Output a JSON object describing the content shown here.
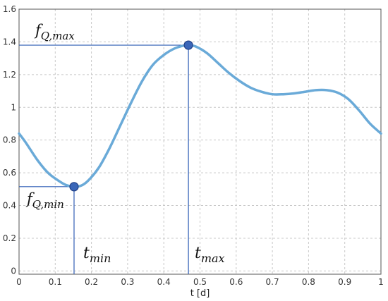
{
  "chart_data": {
    "type": "line",
    "xlabel": "t [d]",
    "ylabel": "",
    "xlim": [
      0,
      1
    ],
    "ylim": [
      -0.02,
      1.6
    ],
    "grid": true,
    "x_ticks": [
      0,
      0.1,
      0.2,
      0.3,
      0.4,
      0.5,
      0.6,
      0.7,
      0.8,
      0.9,
      1
    ],
    "x_tick_labels": [
      "0",
      "0.1",
      "0.2",
      "0.3",
      "0.4",
      "0.5",
      "0.6",
      "0.7",
      "0.8",
      "0.9",
      "1"
    ],
    "y_ticks": [
      0,
      0.2,
      0.4,
      0.6,
      0.8,
      1,
      1.2,
      1.4,
      1.6
    ],
    "y_tick_labels": [
      "0",
      "0.2",
      "0.4",
      "0.6",
      "0.8",
      "1",
      "1.2",
      "1.4",
      "1.6"
    ],
    "line_color": "#6aaad8",
    "marker_color": "#3a66b8",
    "guide_color": "#2f5eb5",
    "series": [
      {
        "x": [
          0,
          0.02,
          0.05,
          0.08,
          0.11,
          0.13,
          0.15,
          0.17,
          0.19,
          0.22,
          0.25,
          0.28,
          0.31,
          0.34,
          0.37,
          0.4,
          0.43,
          0.46,
          0.47,
          0.49,
          0.52,
          0.55,
          0.58,
          0.61,
          0.64,
          0.67,
          0.7,
          0.73,
          0.76,
          0.79,
          0.82,
          0.85,
          0.88,
          0.91,
          0.94,
          0.97,
          1.0
        ],
        "y": [
          0.84,
          0.78,
          0.68,
          0.6,
          0.55,
          0.525,
          0.515,
          0.52,
          0.55,
          0.63,
          0.75,
          0.89,
          1.03,
          1.16,
          1.26,
          1.32,
          1.36,
          1.38,
          1.38,
          1.37,
          1.33,
          1.27,
          1.21,
          1.16,
          1.12,
          1.095,
          1.08,
          1.08,
          1.085,
          1.095,
          1.105,
          1.105,
          1.09,
          1.05,
          0.98,
          0.9,
          0.84
        ]
      }
    ],
    "markers": [
      {
        "x": 0.152,
        "y": 0.515
      },
      {
        "x": 0.468,
        "y": 1.38
      }
    ],
    "annotations": {
      "fq_max": {
        "main": "f",
        "sub": "Q,max"
      },
      "fq_min": {
        "main": "f",
        "sub": "Q,min"
      },
      "t_min": {
        "main": "t",
        "sub": "min"
      },
      "t_max": {
        "main": "t",
        "sub": "max"
      }
    }
  }
}
